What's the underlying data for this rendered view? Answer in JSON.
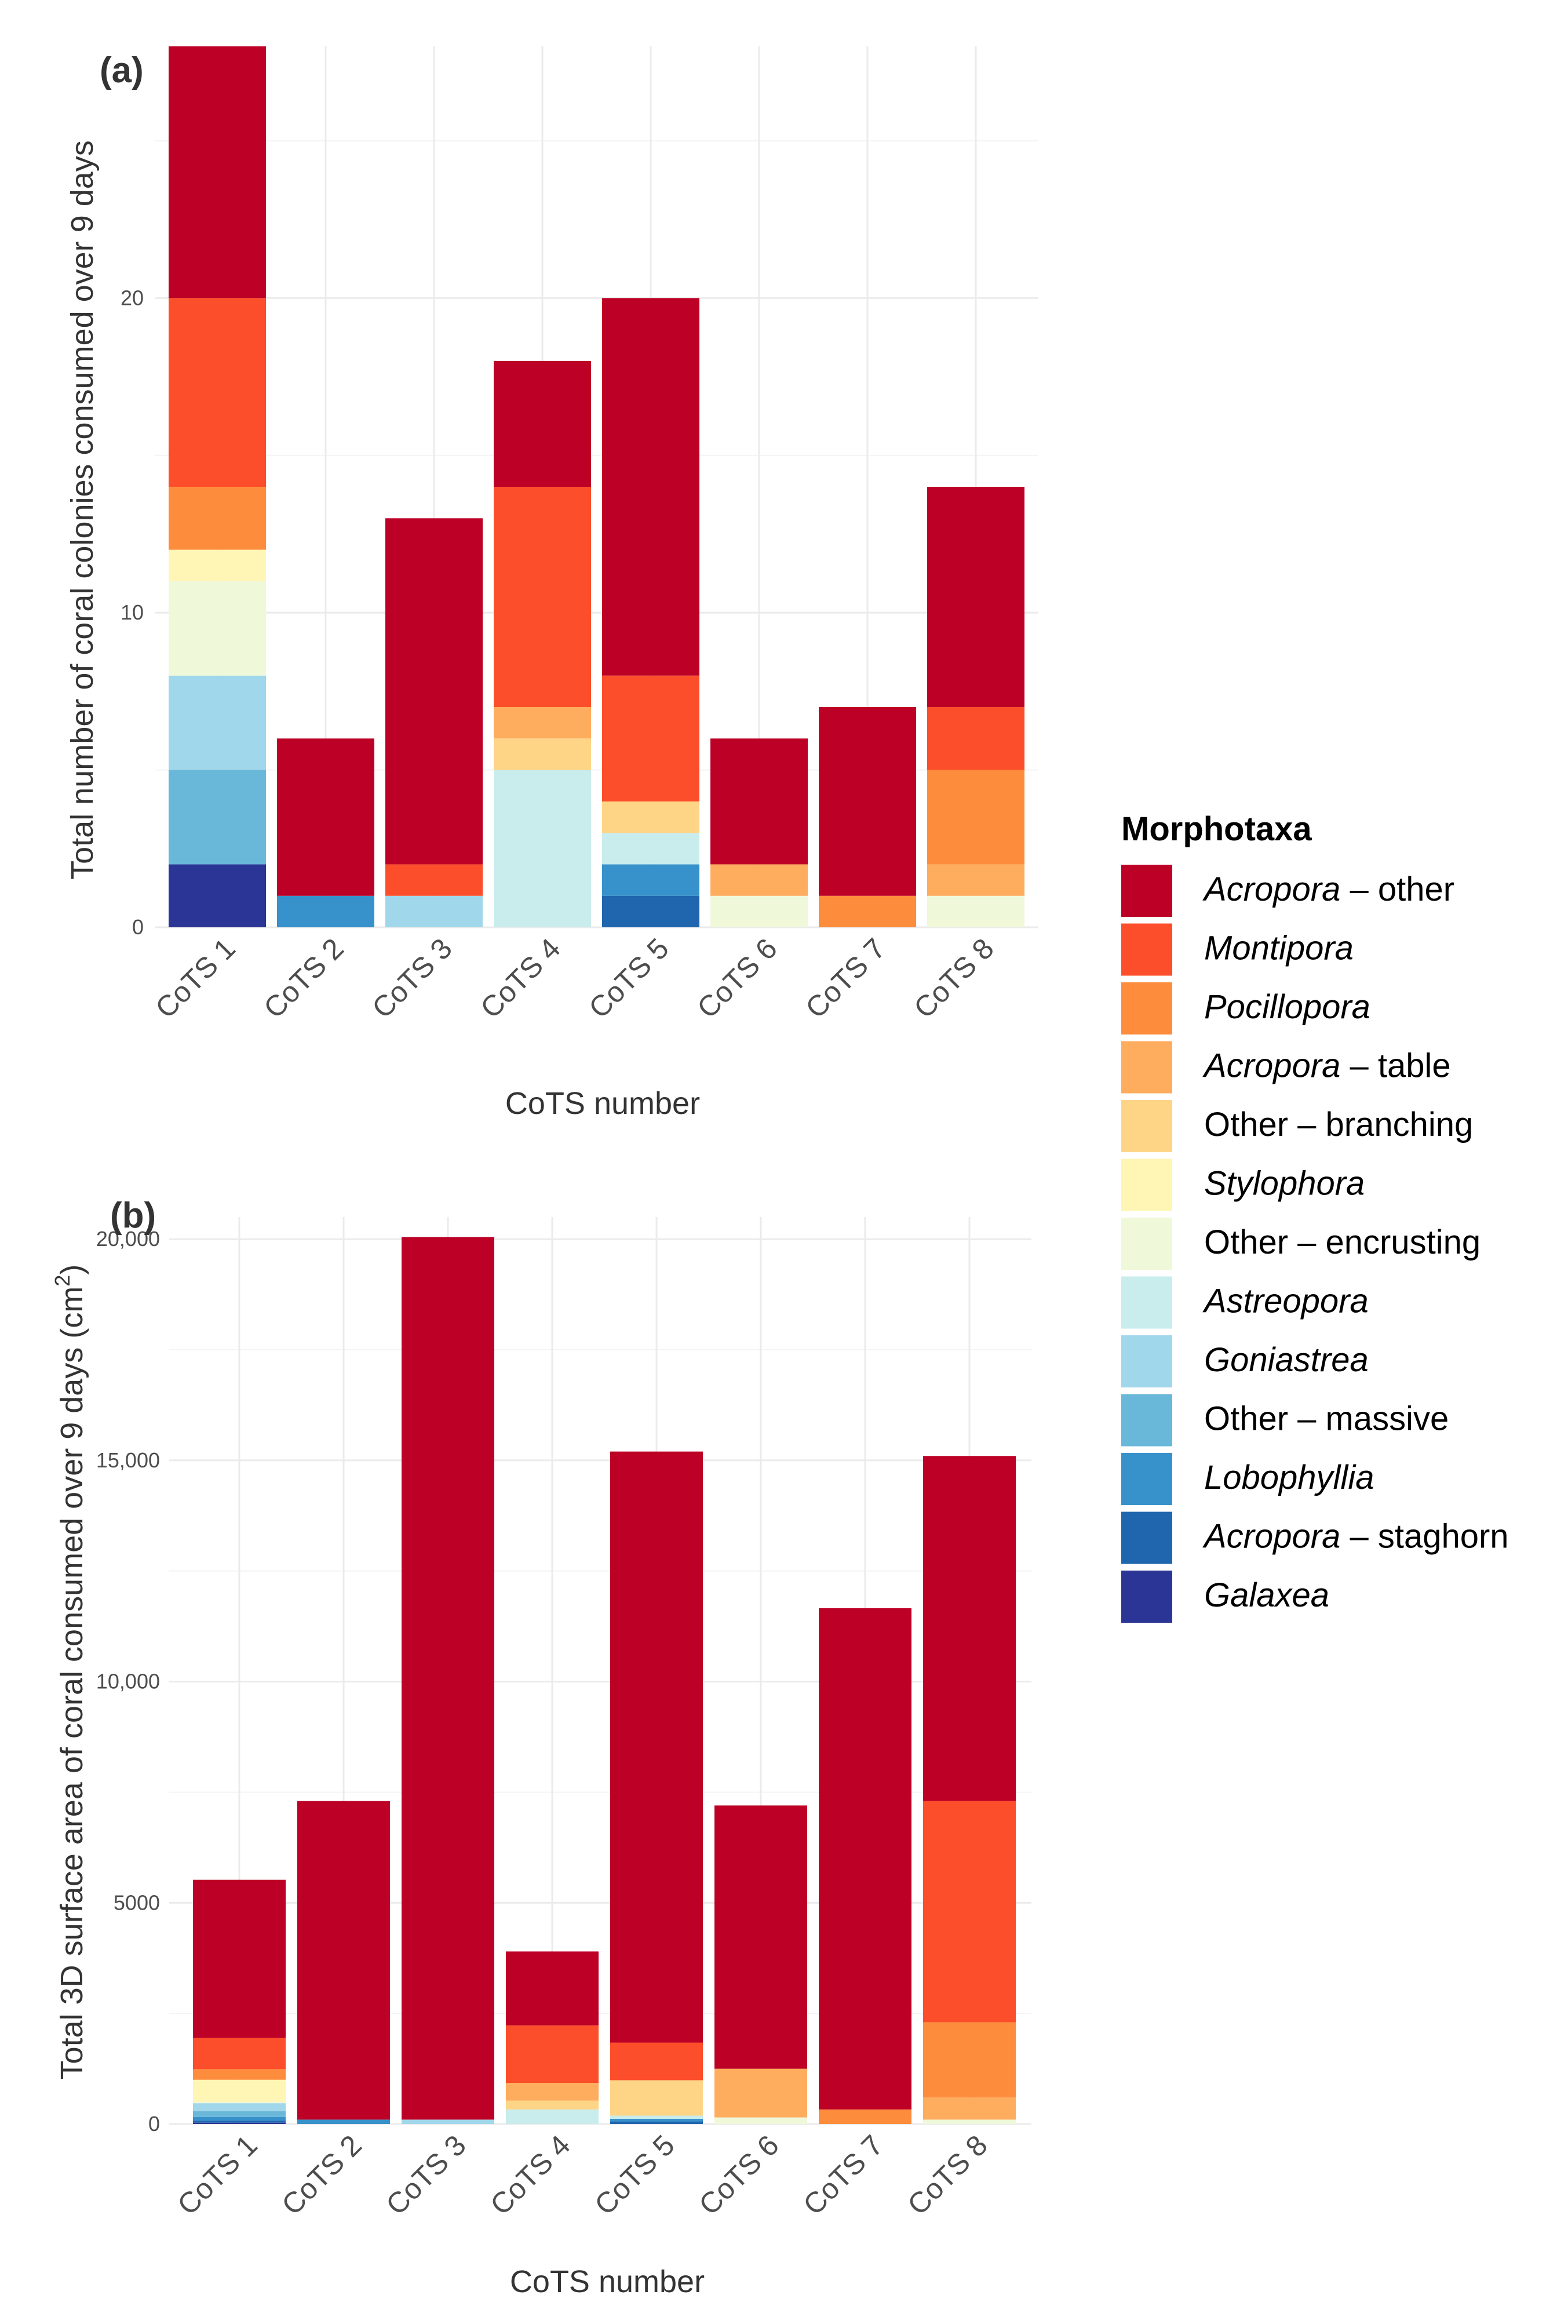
{
  "legend": {
    "title": "Morphotaxa",
    "items": [
      {
        "italic": "Acropora",
        "rest": " – other",
        "color": "#bd0026"
      },
      {
        "italic": "Montipora",
        "rest": "",
        "color": "#fc4e2a"
      },
      {
        "italic": "Pocillopora",
        "rest": "",
        "color": "#fd8d3c"
      },
      {
        "italic": "Acropora",
        "rest": " – table",
        "color": "#feac5e"
      },
      {
        "italic": "",
        "rest": "Other – branching",
        "color": "#fed587"
      },
      {
        "italic": "Stylophora",
        "rest": "",
        "color": "#fff5b5"
      },
      {
        "italic": "",
        "rest": "Other – encrusting",
        "color": "#eff8d9"
      },
      {
        "italic": "Astreopora",
        "rest": "",
        "color": "#c9ecec"
      },
      {
        "italic": "Goniastrea",
        "rest": "",
        "color": "#a1d7ea"
      },
      {
        "italic": "",
        "rest": "Other – massive",
        "color": "#69b7d9"
      },
      {
        "italic": "Lobophyllia",
        "rest": "",
        "color": "#3792cb"
      },
      {
        "italic": "Acropora",
        "rest": " – staghorn",
        "color": "#1f66ae"
      },
      {
        "italic": "Galaxea",
        "rest": "",
        "color": "#2b3595"
      }
    ]
  },
  "chart_data": [
    {
      "type": "bar",
      "stacked": true,
      "panel_label": "(a)",
      "xlabel": "CoTS number",
      "ylabel": "Total number of coral colonies consumed over 9 days",
      "ylim": [
        0,
        28
      ],
      "yticks": [
        0,
        10,
        20
      ],
      "ytick_labels": [
        "0",
        "10",
        "20"
      ],
      "minor_gridlines": [
        5,
        15,
        25
      ],
      "categories": [
        "CoTS 1",
        "CoTS 2",
        "CoTS 3",
        "CoTS 4",
        "CoTS 5",
        "CoTS 6",
        "CoTS 7",
        "CoTS 8"
      ],
      "series": [
        {
          "name": "Galaxea",
          "values": [
            2,
            0,
            0,
            0,
            0,
            0,
            0,
            0
          ]
        },
        {
          "name": "Acropora – staghorn",
          "values": [
            0,
            0,
            0,
            0,
            1,
            0,
            0,
            0
          ]
        },
        {
          "name": "Lobophyllia",
          "values": [
            0,
            1,
            0,
            0,
            1,
            0,
            0,
            0
          ]
        },
        {
          "name": "Other – massive",
          "values": [
            3,
            0,
            0,
            0,
            0,
            0,
            0,
            0
          ]
        },
        {
          "name": "Goniastrea",
          "values": [
            3,
            0,
            1,
            0,
            0,
            0,
            0,
            0
          ]
        },
        {
          "name": "Astreopora",
          "values": [
            0,
            0,
            0,
            5,
            1,
            0,
            0,
            0
          ]
        },
        {
          "name": "Other – encrusting",
          "values": [
            3,
            0,
            0,
            0,
            0,
            1,
            0,
            1
          ]
        },
        {
          "name": "Stylophora",
          "values": [
            1,
            0,
            0,
            0,
            0,
            0,
            0,
            0
          ]
        },
        {
          "name": "Other – branching",
          "values": [
            0,
            0,
            0,
            1,
            1,
            0,
            0,
            0
          ]
        },
        {
          "name": "Acropora – table",
          "values": [
            0,
            0,
            0,
            1,
            0,
            1,
            0,
            1
          ]
        },
        {
          "name": "Pocillopora",
          "values": [
            2,
            0,
            0,
            0,
            0,
            0,
            1,
            3
          ]
        },
        {
          "name": "Montipora",
          "values": [
            6,
            0,
            1,
            7,
            4,
            0,
            0,
            2
          ]
        },
        {
          "name": "Acropora – other",
          "values": [
            8,
            5,
            11,
            4,
            12,
            4,
            6,
            7
          ]
        }
      ]
    },
    {
      "type": "bar",
      "stacked": true,
      "panel_label": "(b)",
      "xlabel": "CoTS number",
      "ylabel": "Total 3D surface area of coral consumed over 9 days (cm",
      "ylabel_superscript": "2",
      "ylabel_suffix": ")",
      "ylim": [
        0,
        20500
      ],
      "yticks": [
        0,
        5000,
        10000,
        15000,
        20000
      ],
      "ytick_labels": [
        "0",
        "5000",
        "10,000",
        "15,000",
        "20,000"
      ],
      "minor_gridlines": [
        2500,
        7500,
        12500,
        17500
      ],
      "categories": [
        "CoTS 1",
        "CoTS 2",
        "CoTS 3",
        "CoTS 4",
        "CoTS 5",
        "CoTS 6",
        "CoTS 7",
        "CoTS 8"
      ],
      "series": [
        {
          "name": "Galaxea",
          "values": [
            30,
            0,
            0,
            0,
            0,
            0,
            0,
            0
          ]
        },
        {
          "name": "Acropora – staghorn",
          "values": [
            50,
            0,
            0,
            0,
            60,
            0,
            0,
            0
          ]
        },
        {
          "name": "Lobophyllia",
          "values": [
            80,
            100,
            0,
            0,
            60,
            0,
            0,
            0
          ]
        },
        {
          "name": "Other – massive",
          "values": [
            130,
            0,
            0,
            0,
            0,
            0,
            0,
            0
          ]
        },
        {
          "name": "Goniastrea",
          "values": [
            180,
            0,
            100,
            0,
            0,
            0,
            0,
            0
          ]
        },
        {
          "name": "Astreopora",
          "values": [
            0,
            0,
            0,
            330,
            70,
            0,
            0,
            0
          ]
        },
        {
          "name": "Other – encrusting",
          "values": [
            30,
            0,
            0,
            0,
            0,
            150,
            0,
            100
          ]
        },
        {
          "name": "Stylophora",
          "values": [
            500,
            0,
            0,
            0,
            0,
            0,
            0,
            0
          ]
        },
        {
          "name": "Other – branching",
          "values": [
            0,
            0,
            0,
            200,
            800,
            0,
            0,
            0
          ]
        },
        {
          "name": "Acropora – table",
          "values": [
            0,
            0,
            0,
            400,
            0,
            1100,
            0,
            500
          ]
        },
        {
          "name": "Pocillopora",
          "values": [
            240,
            0,
            0,
            0,
            0,
            0,
            330,
            1700
          ]
        },
        {
          "name": "Montipora",
          "values": [
            710,
            0,
            0,
            1300,
            850,
            0,
            0,
            5000
          ]
        },
        {
          "name": "Acropora – other",
          "values": [
            3570,
            7200,
            19950,
            1670,
            13360,
            5950,
            11330,
            7800
          ]
        }
      ]
    }
  ]
}
